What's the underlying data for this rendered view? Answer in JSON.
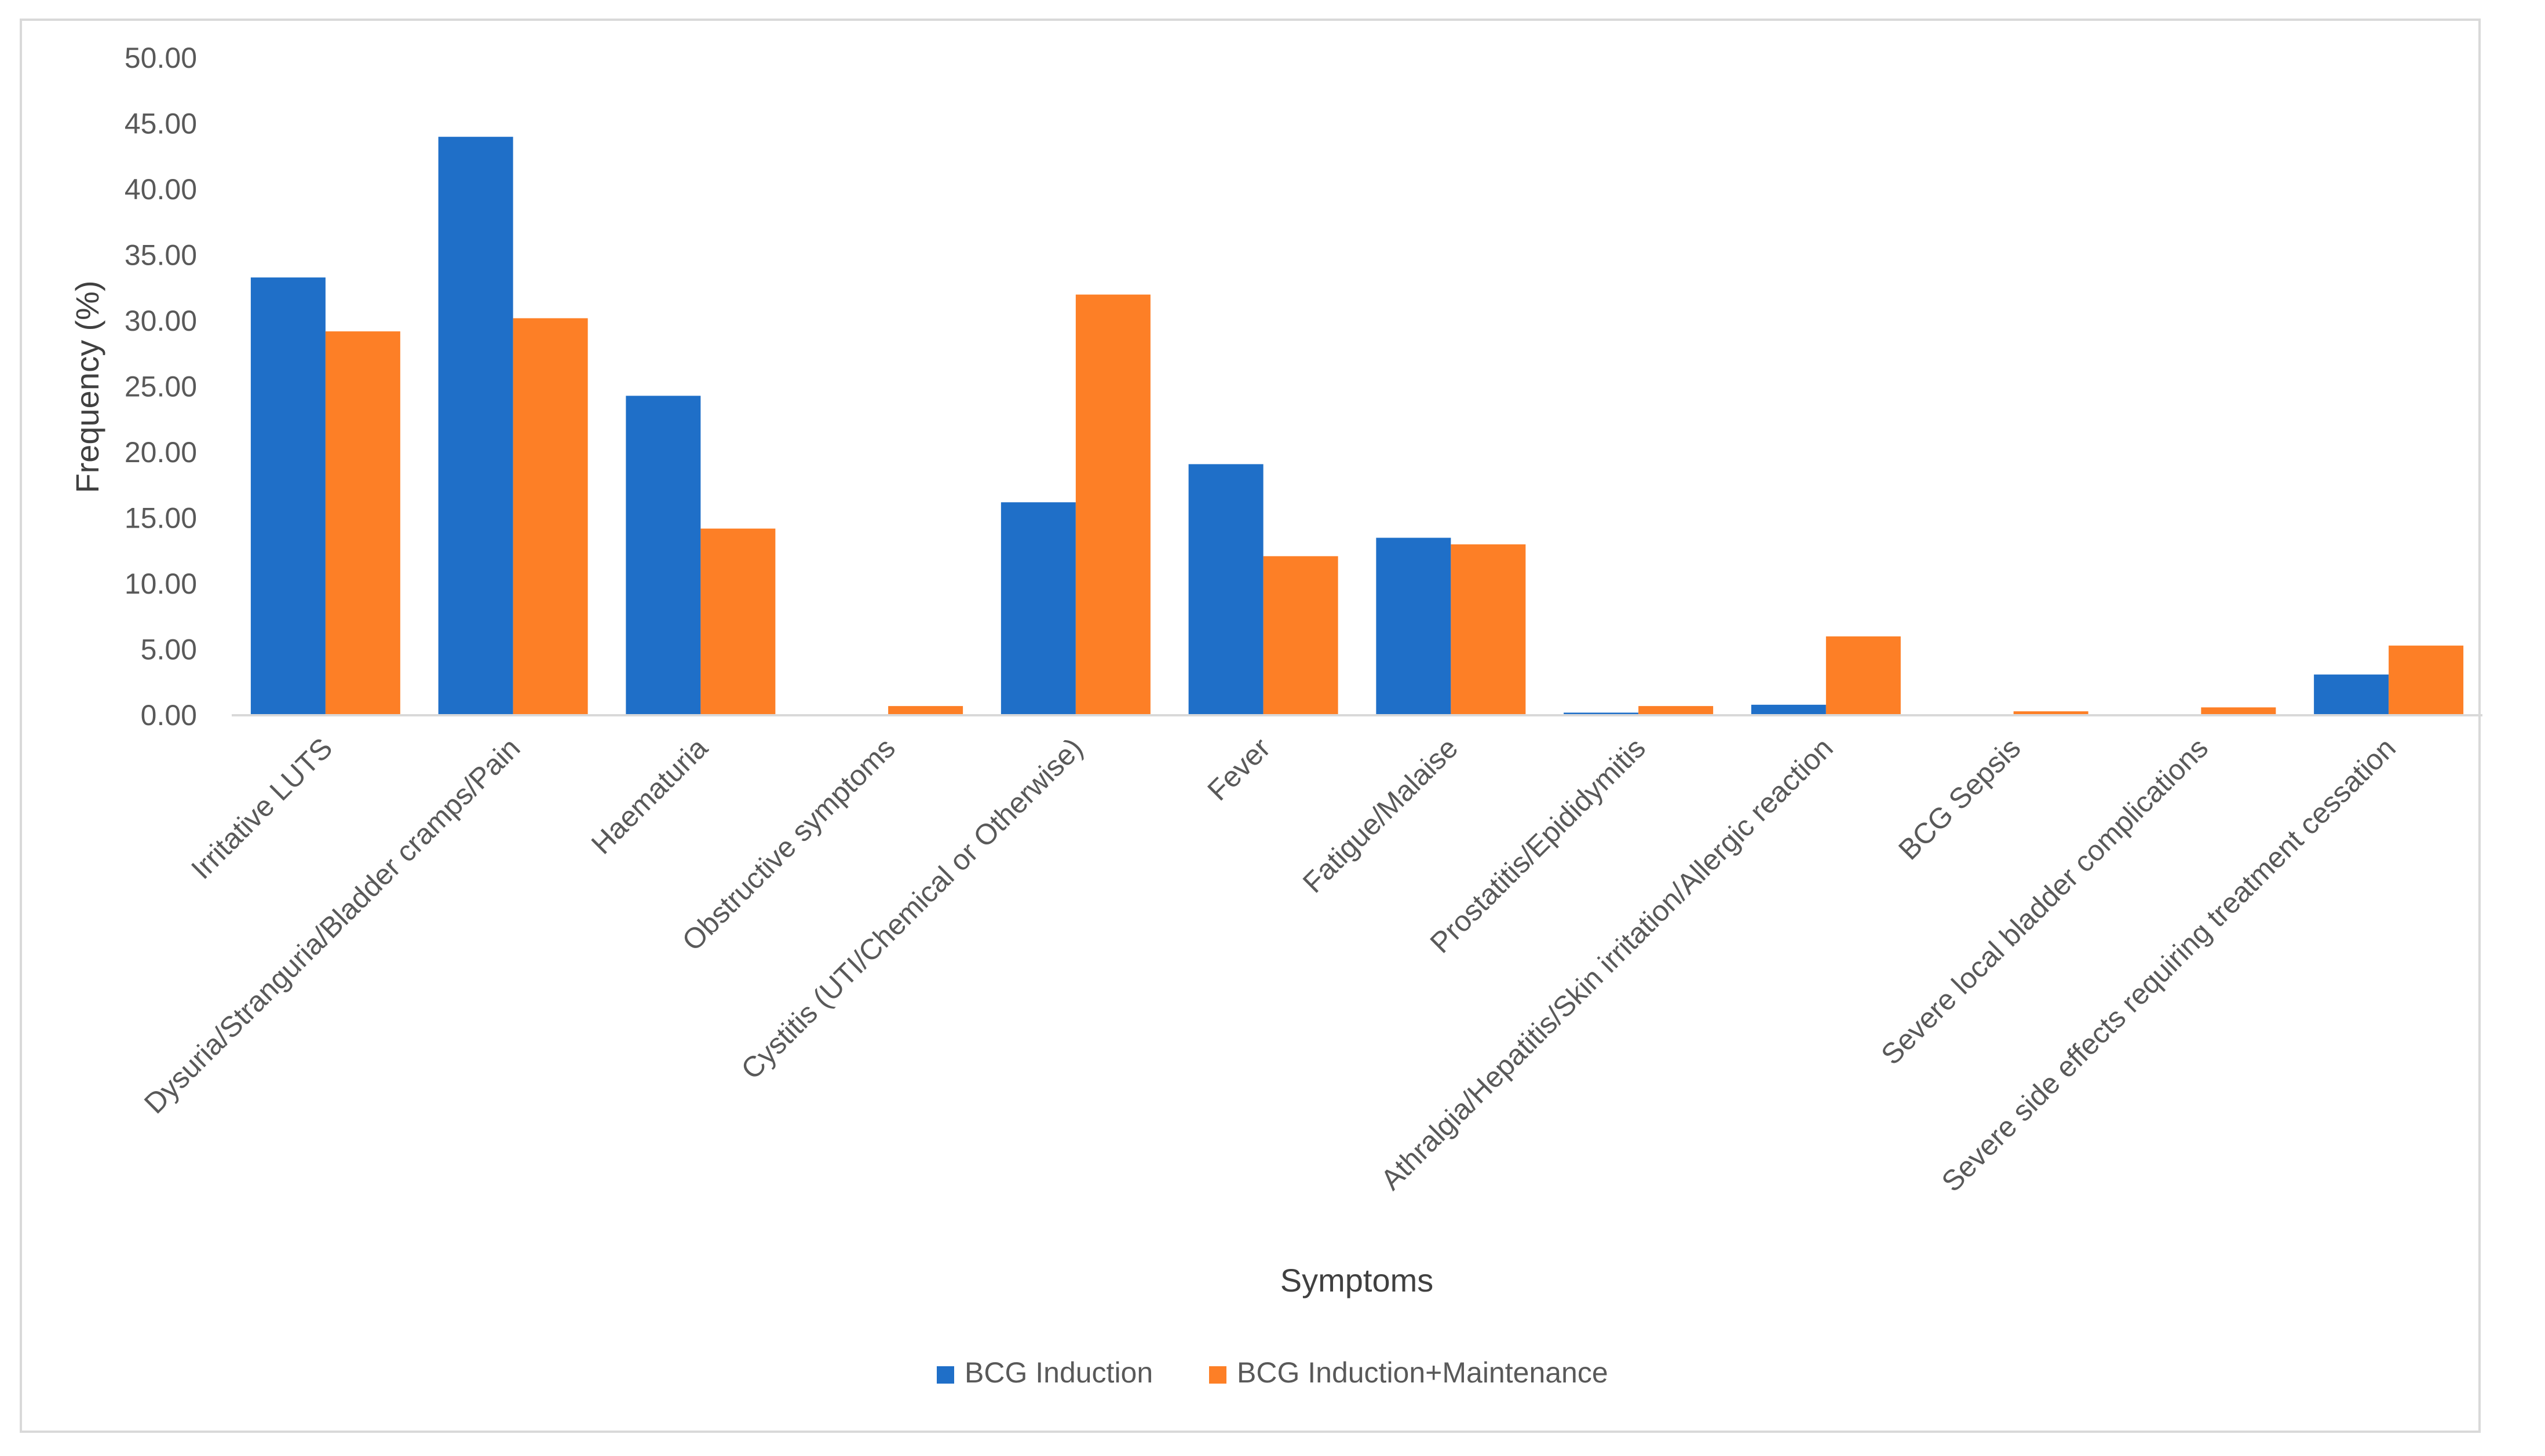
{
  "chart_data": {
    "type": "bar",
    "title": "",
    "xlabel": "Symptoms",
    "ylabel": "Frequency (%)",
    "ylim": [
      0,
      50
    ],
    "yticks": [
      "0.00",
      "5.00",
      "10.00",
      "15.00",
      "20.00",
      "25.00",
      "30.00",
      "35.00",
      "40.00",
      "45.00",
      "50.00"
    ],
    "grid": false,
    "legend_position": "bottom",
    "categories": [
      "Irritative LUTS",
      "Dysuria/Stranguria/Bladder cramps/Pain",
      "Haematuria",
      "Obstructive symptoms",
      "Cystitis (UTI/Chemical or Otherwise)",
      "Fever",
      "Fatigue/Malaise",
      "Prostatitis/Epididymitis",
      "Athralgia/Hepatitis/Skin irritation/Allergic reaction",
      "BCG Sepsis",
      "Severe local bladder complications",
      "Severe side effects requiring treatment cessation"
    ],
    "series": [
      {
        "name": "BCG Induction",
        "color": "#1f6fc8",
        "values": [
          33.3,
          44.0,
          24.3,
          0.0,
          16.2,
          19.1,
          13.5,
          0.2,
          0.8,
          0.0,
          0.0,
          3.1
        ]
      },
      {
        "name": "BCG Induction+Maintenance",
        "color": "#fd7f26",
        "values": [
          29.2,
          30.2,
          14.2,
          0.7,
          32.0,
          12.1,
          13.0,
          0.7,
          6.0,
          0.3,
          0.6,
          5.3
        ]
      }
    ]
  }
}
